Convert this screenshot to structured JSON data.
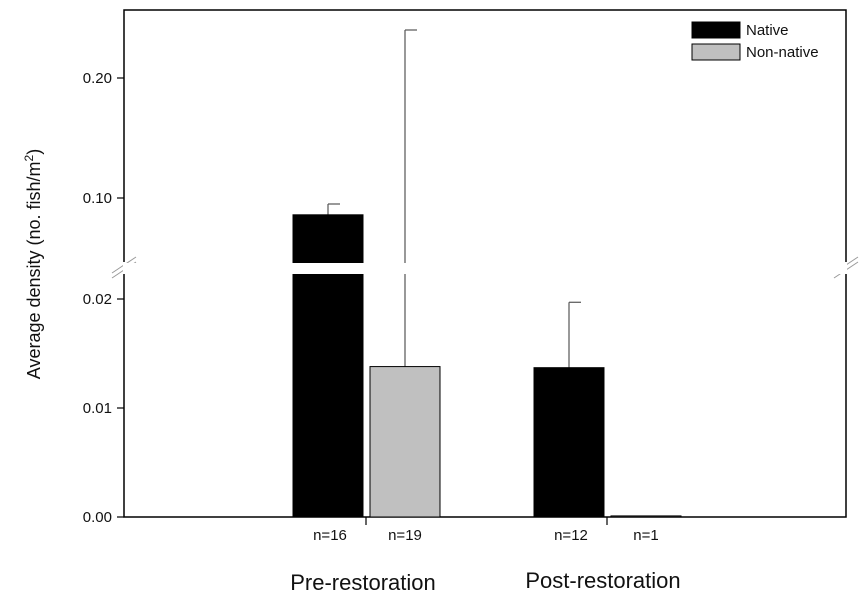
{
  "chart_data": {
    "type": "bar",
    "title": "",
    "xlabel": "",
    "ylabel": "Average density (no. fish/m",
    "ylabel_sup": "2",
    "ylabel_end": ")",
    "y_axis_broken": true,
    "ylim_lower": [
      0,
      0.02
    ],
    "ylim_upper": [
      0.08,
      0.23
    ],
    "yticks_lower": [
      "0.00",
      "0.01",
      "0.02"
    ],
    "yticks_upper": [
      "0.10",
      "0.20"
    ],
    "legend_position": "top-right",
    "groups": [
      "Pre-restoration",
      "Post-restoration"
    ],
    "series": [
      {
        "name": "Native",
        "color": "#000000",
        "values": [
          0.086,
          0.0137
        ],
        "error_upper": [
          0.095,
          0.0197
        ],
        "n": [
          "n=16",
          "n=12"
        ]
      },
      {
        "name": "Non-native",
        "color": "#c0c0c0",
        "values": [
          0.0138,
          0.0001
        ],
        "error_upper": [
          0.24,
          null
        ],
        "n": [
          "n=19",
          "n=1"
        ]
      }
    ]
  }
}
